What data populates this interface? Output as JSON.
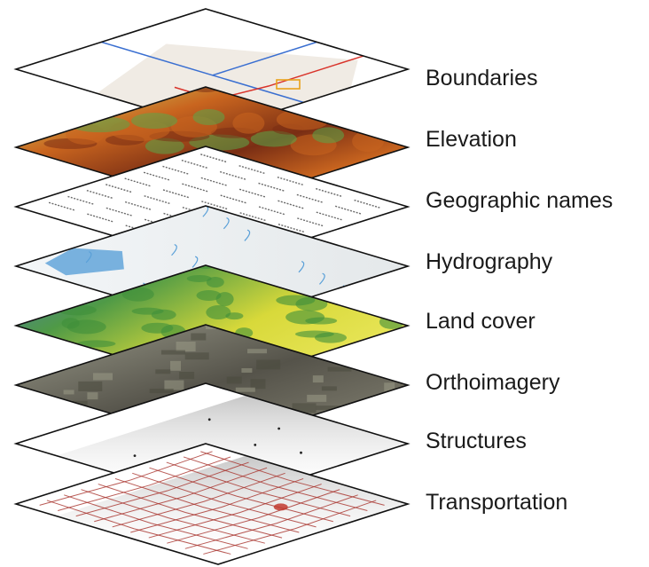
{
  "layers": [
    {
      "label": "Boundaries",
      "style": "boundaries"
    },
    {
      "label": "Elevation",
      "style": "elevation"
    },
    {
      "label": "Geographic names",
      "style": "names"
    },
    {
      "label": "Hydrography",
      "style": "hydrography"
    },
    {
      "label": "Land cover",
      "style": "landcover"
    },
    {
      "label": "Orthoimagery",
      "style": "orthoimagery"
    },
    {
      "label": "Structures",
      "style": "structures"
    },
    {
      "label": "Transportation",
      "style": "transportation"
    }
  ],
  "colors": {
    "outline": "#111111",
    "label": "#1a1a1a",
    "boundary_blue": "#3a6fd1",
    "boundary_red": "#d9342b",
    "road_red": "#a8322c",
    "water_blue": "#5aa0d8",
    "elev_high": "#7a2e14",
    "elev_mid": "#c9651f",
    "elev_low": "#d9e96a",
    "elev_green": "#5aa84a",
    "land_yellow": "#e0df38",
    "land_green": "#3f8f3a",
    "land_blue": "#4f79b8",
    "ortho_dark": "#4b4a3e",
    "ortho_light": "#9a9a86"
  }
}
